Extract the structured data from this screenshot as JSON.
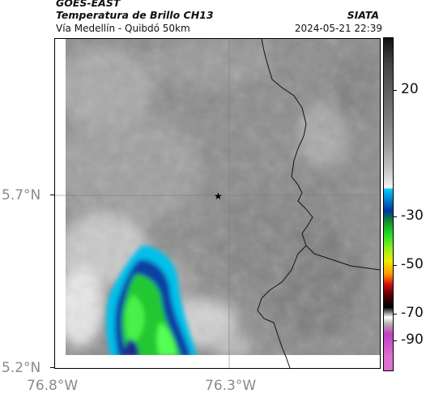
{
  "header": {
    "satellite": "GOES-EAST",
    "product": "Temperatura de Brillo CH13",
    "region": "Vía Medellín - Quibdó 50km",
    "organization": "SIATA",
    "datetime": "2024-05-21 22:39"
  },
  "map": {
    "lat_ticks": [
      "5.7°N",
      "5.2°N"
    ],
    "lon_ticks": [
      "76.8°W",
      "76.3°W"
    ],
    "marker": "star-icon"
  },
  "colorbar": {
    "labels": [
      "20",
      "-30",
      "-50",
      "-70",
      "-90"
    ],
    "colors": {
      "warm_top": "#222222",
      "gray": "#808080",
      "light": "#f2f2f2",
      "cyan": "#00c8f0",
      "blue": "#0033a0",
      "green": "#22dd22",
      "yellow": "#eeee00",
      "red": "#d81010",
      "black": "#000000",
      "magenta": "#c040c0"
    }
  }
}
